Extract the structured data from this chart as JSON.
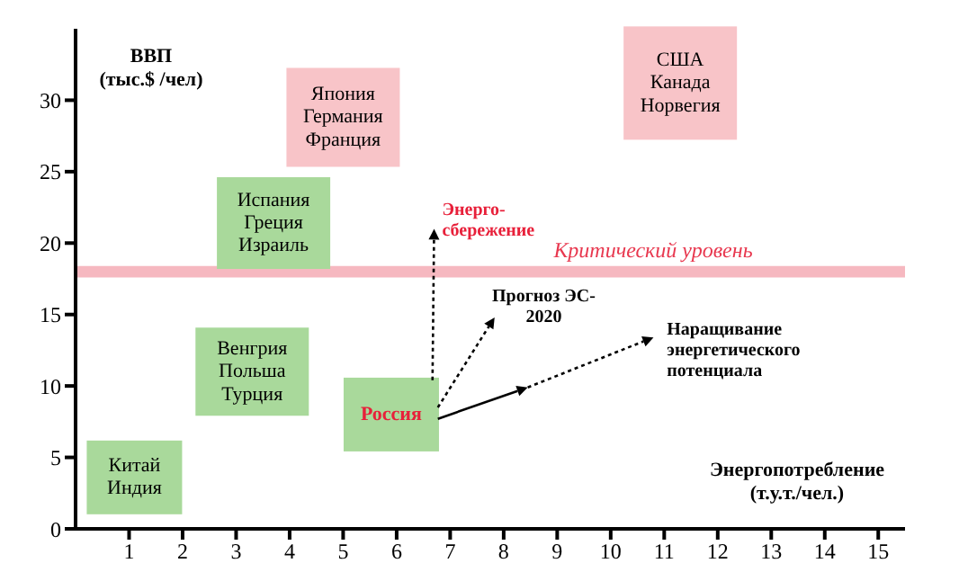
{
  "chart_data": {
    "type": "scatter",
    "ylabel": "ВВП\n(тыс.$ /чел)",
    "xlabel": "Энергопотребление\n(т.у.т./чел.)",
    "xlim": [
      0,
      15.5
    ],
    "xticks": [
      1,
      2,
      3,
      4,
      5,
      6,
      7,
      8,
      9,
      10,
      11,
      12,
      13,
      14,
      15
    ],
    "ylim": [
      0,
      35
    ],
    "yticks": [
      0,
      5,
      10,
      15,
      20,
      25,
      30
    ],
    "bands": [
      {
        "axis": "y",
        "from": 17.6,
        "to": 18.4,
        "label": "Критический уровень",
        "color": "#f6b8c0"
      }
    ],
    "annotations": [
      "Япония\nГермания\nФранция",
      "США\nКанада\nНорвегия",
      "Испания\nГреция\nИзраиль",
      "Венгрия\nПольша\nТурция",
      "Китай\nИндия",
      "Россия",
      "Энерго-\nсбережение",
      "Прогноз ЭС-\n2020",
      "Наращивание\nэнергетического\nпотенциала"
    ]
  }
}
